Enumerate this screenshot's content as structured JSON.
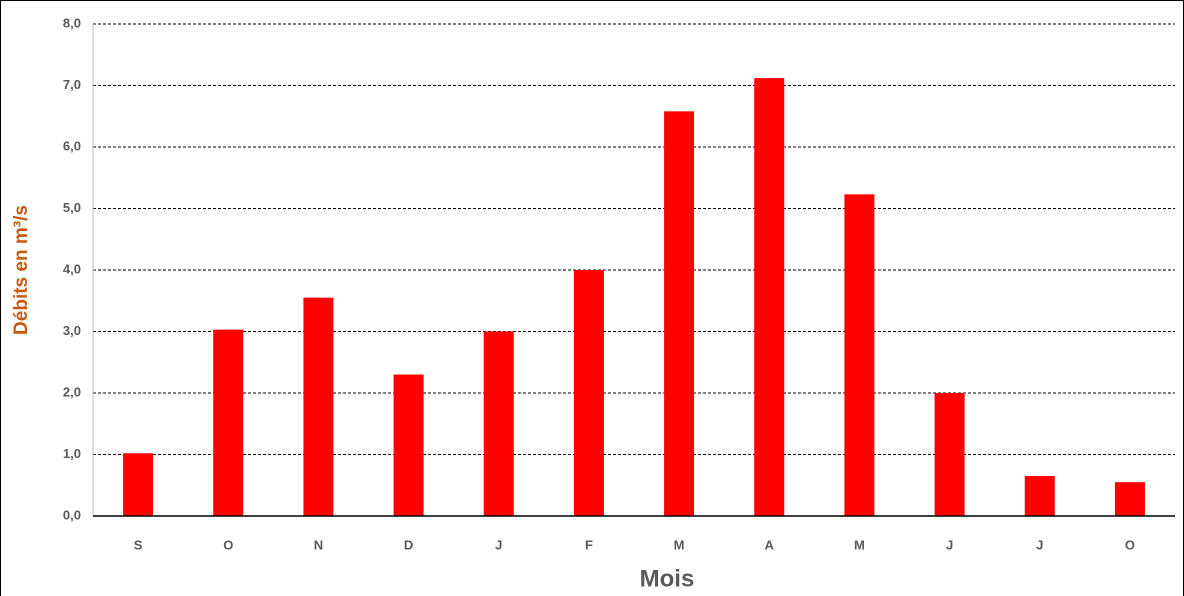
{
  "chart_data": {
    "type": "bar",
    "x_label": "Mois",
    "y_label": "Débits en m³/s",
    "categories": [
      "S",
      "O",
      "N",
      "D",
      "J",
      "F",
      "M",
      "A",
      "M",
      "J",
      "J",
      "O"
    ],
    "values": [
      1.02,
      3.03,
      3.55,
      2.3,
      3.0,
      4.0,
      6.58,
      7.12,
      5.23,
      2.0,
      0.65,
      0.55
    ],
    "color": "#ff0000",
    "ylim": [
      0,
      8
    ],
    "yticks": [
      {
        "value": 0,
        "label": "0,0"
      },
      {
        "value": 1,
        "label": "1,0"
      },
      {
        "value": 2,
        "label": "2,0"
      },
      {
        "value": 3,
        "label": "3,0"
      },
      {
        "value": 4,
        "label": "4,0"
      },
      {
        "value": 5,
        "label": "5,0"
      },
      {
        "value": 6,
        "label": "6,0"
      },
      {
        "value": 7,
        "label": "7,0"
      },
      {
        "value": 8,
        "label": "8,0"
      }
    ],
    "grid": true
  }
}
